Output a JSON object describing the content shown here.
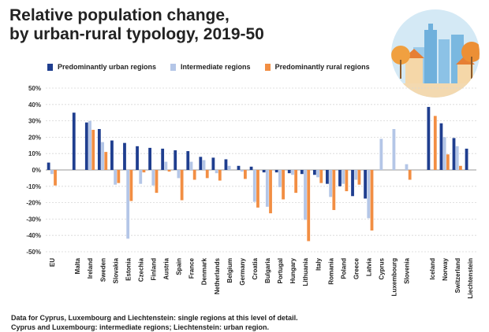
{
  "header": {
    "title_line1": "Relative population change,",
    "title_line2": "by urban-rural typology, 2019-50"
  },
  "footnote": {
    "line1": "Data for Cyprus, Luxembourg and Liechtenstein: single regions at this level of detail.",
    "line2": "Cyprus and Luxembourg: intermediate regions; Liechtenstein: urban region."
  },
  "illustration": {
    "icon": "city-skyline-illustration",
    "colors": {
      "sky": "#cfe6f3",
      "building": "#6fb0dc",
      "tree": "#f0a040",
      "ground": "#f3d9b0"
    }
  },
  "chart_data": {
    "type": "bar",
    "ylim": [
      -50,
      50
    ],
    "yticks": [
      -50,
      -40,
      -30,
      -20,
      -10,
      0,
      10,
      20,
      30,
      40,
      50
    ],
    "ytick_labels": [
      "-50%",
      "-40%",
      "-30%",
      "-20%",
      "-10%",
      "0%",
      "10%",
      "20%",
      "30%",
      "40%",
      "50%"
    ],
    "grid": true,
    "legend_position": "top",
    "categories": [
      "EU",
      "",
      "Malta",
      "Ireland",
      "Sweden",
      "Slovakia",
      "Estonia",
      "Czechia",
      "Finland",
      "Austria",
      "Spain",
      "France",
      "Denmark",
      "Netherlands",
      "Belgium",
      "Germany",
      "Croatia",
      "Bulgaria",
      "Portugal",
      "Hungary",
      "Lithuania",
      "Italy",
      "Romania",
      "Poland",
      "Greece",
      "Latvia",
      "Cyprus",
      "Luxembourg",
      "Slovenia",
      "",
      "Iceland",
      "Norway",
      "Switzerland",
      "Liechtenstein"
    ],
    "series": [
      {
        "name": "Predominantly urban regions",
        "color": "#1f3e8f",
        "values": [
          4.5,
          null,
          35,
          29,
          25,
          18,
          16.5,
          14.5,
          13.5,
          13,
          12,
          11.5,
          8,
          7.5,
          6.5,
          2.5,
          2,
          -1.5,
          -1.5,
          -2,
          -2.5,
          -3,
          -8.5,
          -10,
          -16,
          -17.5,
          null,
          null,
          null,
          null,
          38.5,
          28.5,
          19.5,
          13
        ]
      },
      {
        "name": "Intermediate regions",
        "color": "#b4c6e7",
        "values": [
          -2.5,
          null,
          null,
          30,
          17,
          -9,
          -42,
          -8.5,
          -9.5,
          5,
          -5,
          5,
          6,
          -2,
          2.5,
          -1,
          -19.5,
          -22.5,
          -10.5,
          -3,
          -30.5,
          -4.5,
          -16.5,
          -8.5,
          -6,
          -29.5,
          19,
          25,
          3.5,
          null,
          null,
          20,
          14.5,
          null
        ]
      },
      {
        "name": "Predominantly rural regions",
        "color": "#f28e43",
        "values": [
          -9.5,
          null,
          null,
          24.5,
          11,
          -8,
          -19,
          -1.5,
          -14,
          -1,
          -18.5,
          -6,
          -5,
          -6.5,
          null,
          -5.5,
          -23,
          -26.5,
          -18,
          -14,
          -43.5,
          -8,
          -24.5,
          -13,
          -9,
          -37,
          null,
          null,
          -6,
          null,
          33,
          9.5,
          2.5,
          null
        ]
      }
    ]
  }
}
